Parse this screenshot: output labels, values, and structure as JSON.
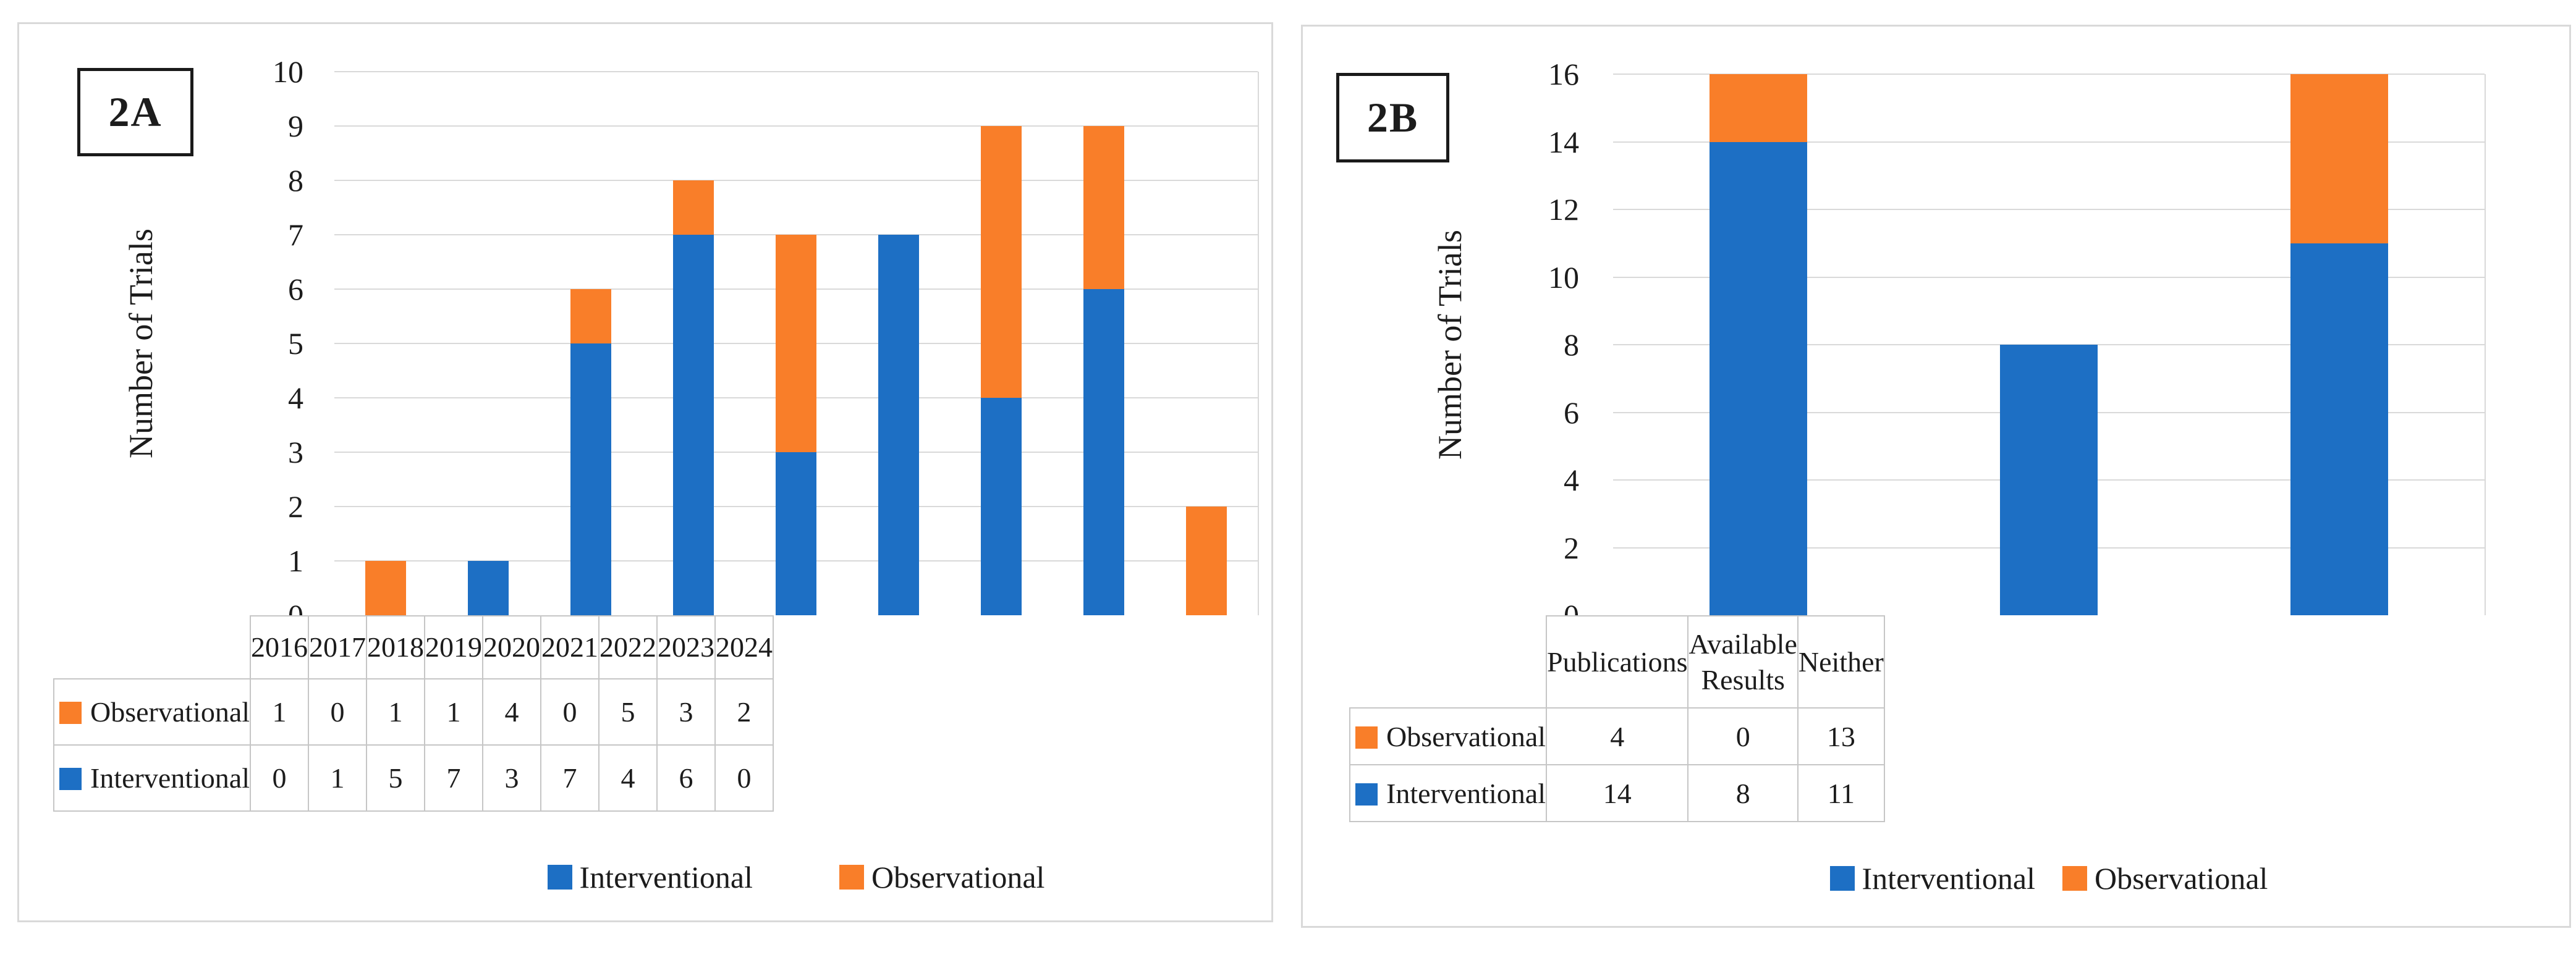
{
  "figure": {
    "panel_labels": [
      "2A",
      "2B"
    ]
  },
  "colors": {
    "interventional_blue": "#1d6fc4",
    "observational_orange": "#f97e29",
    "gridline": "#d9d9d9",
    "table_border": "#c6c6c6",
    "panel_border": "#d9d9d9",
    "text": "#1c1c1c"
  },
  "chart_data": [
    {
      "panel_label": "2A",
      "type": "bar",
      "stacked": true,
      "title": "",
      "xlabel": "",
      "ylabel": "Number of Trials",
      "ylim": [
        0,
        10
      ],
      "ytick_step": 1,
      "yticks": [
        0,
        1,
        2,
        3,
        4,
        5,
        6,
        7,
        8,
        9,
        10
      ],
      "grid": true,
      "legend_position": "bottom",
      "categories": [
        "2016",
        "2017",
        "2018",
        "2019",
        "2020",
        "2021",
        "2022",
        "2023",
        "2024"
      ],
      "series": [
        {
          "name": "Interventional",
          "color": "#1d6fc4",
          "values": [
            0,
            1,
            5,
            7,
            3,
            7,
            4,
            6,
            0
          ]
        },
        {
          "name": "Observational",
          "color": "#f97e29",
          "values": [
            1,
            0,
            1,
            1,
            4,
            0,
            5,
            3,
            2
          ]
        }
      ],
      "data_table_rows": [
        {
          "label": "Observational",
          "color": "#f97e29",
          "values": [
            1,
            0,
            1,
            1,
            4,
            0,
            5,
            3,
            2
          ]
        },
        {
          "label": "Interventional",
          "color": "#1d6fc4",
          "values": [
            0,
            1,
            5,
            7,
            3,
            7,
            4,
            6,
            0
          ]
        }
      ],
      "legend": [
        {
          "label": "Interventional",
          "color": "#1d6fc4"
        },
        {
          "label": "Observational",
          "color": "#f97e29"
        }
      ]
    },
    {
      "panel_label": "2B",
      "type": "bar",
      "stacked": true,
      "title": "",
      "xlabel": "",
      "ylabel": "Number of Trials",
      "ylim": [
        0,
        16
      ],
      "ytick_step": 2,
      "yticks": [
        0,
        2,
        4,
        6,
        8,
        10,
        12,
        14,
        16
      ],
      "grid": true,
      "legend_position": "bottom",
      "categories": [
        "Publications",
        "Available Results",
        "Neither"
      ],
      "series": [
        {
          "name": "Interventional",
          "color": "#1d6fc4",
          "values": [
            14,
            8,
            11
          ]
        },
        {
          "name": "Observational",
          "color": "#f97e29",
          "values": [
            4,
            0,
            13
          ]
        }
      ],
      "data_table_rows": [
        {
          "label": "Observational",
          "color": "#f97e29",
          "values": [
            4,
            0,
            13
          ]
        },
        {
          "label": "Interventional",
          "color": "#1d6fc4",
          "values": [
            14,
            8,
            11
          ]
        }
      ],
      "legend": [
        {
          "label": "Interventional",
          "color": "#1d6fc4"
        },
        {
          "label": "Observational",
          "color": "#f97e29"
        }
      ]
    }
  ]
}
